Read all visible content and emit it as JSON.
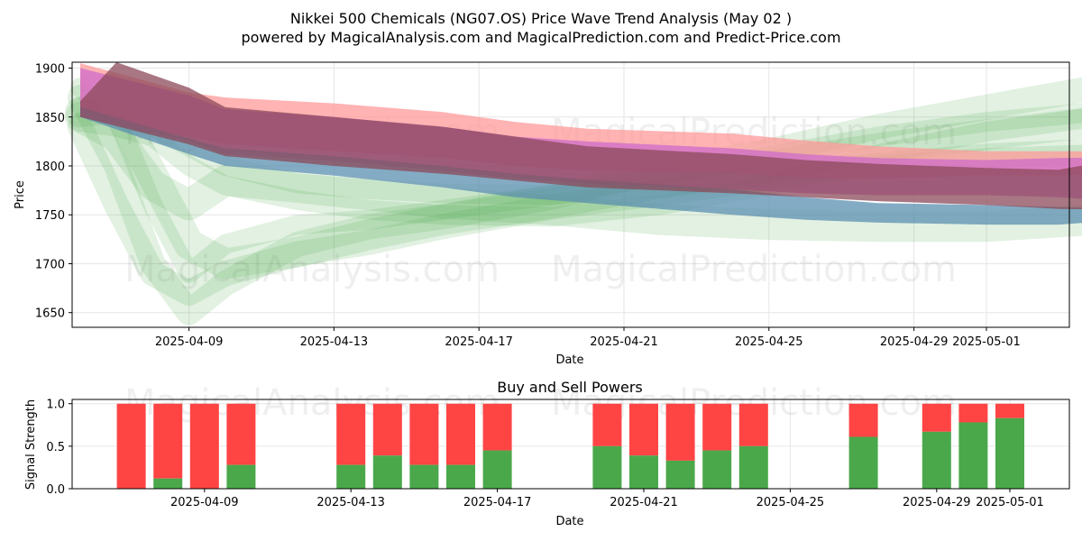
{
  "title_line1": "Nikkei 500 Chemicals (NG07.OS) Price Wave Trend Analysis (May 02 )",
  "title_line2": "powered by MagicalAnalysis.com and MagicalPrediction.com and Predict-Price.com",
  "watermarks": [
    "MagicalAnalysis.com",
    "MagicalPrediction.com"
  ],
  "colors": {
    "sell": "#ff4444",
    "buy": "#4aa84a",
    "red_band": "#ff9999",
    "magenta_band": "#cc66cc",
    "blue_band": "#5b8fb0",
    "green_band": "#4aa84a",
    "dark_band": "#8b4a5a"
  },
  "chart_data": [
    {
      "type": "area",
      "xlabel": "Date",
      "ylabel": "Price",
      "ylim": [
        1635,
        1906
      ],
      "yticks": [
        1650,
        1700,
        1750,
        1800,
        1850,
        1900
      ],
      "xticks": [
        "2025-04-09",
        "2025-04-13",
        "2025-04-17",
        "2025-04-21",
        "2025-04-25",
        "2025-04-29",
        "2025-05-01"
      ],
      "grid": true,
      "series": [
        {
          "role": "red band upper",
          "x": [
            0,
            3,
            4,
            7,
            10,
            12,
            14,
            18,
            20,
            22,
            25,
            27,
            30
          ],
          "values": [
            1905,
            1875,
            1870,
            1864,
            1855,
            1845,
            1838,
            1833,
            1826,
            1820,
            1815,
            1815,
            1815
          ]
        },
        {
          "role": "red band lower",
          "x": [
            0,
            3,
            4,
            7,
            10,
            12,
            14,
            18,
            20,
            22,
            25,
            27,
            30
          ],
          "values": [
            1850,
            1830,
            1822,
            1815,
            1808,
            1800,
            1795,
            1793,
            1788,
            1787,
            1790,
            1790,
            1795
          ]
        },
        {
          "role": "magenta band upper",
          "x": [
            0,
            3,
            4,
            7,
            10,
            12,
            14,
            18,
            20,
            22,
            25,
            27,
            30
          ],
          "values": [
            1900,
            1872,
            1858,
            1850,
            1840,
            1830,
            1825,
            1818,
            1812,
            1808,
            1806,
            1808,
            1810
          ]
        },
        {
          "role": "magenta band lower",
          "x": [
            0,
            3,
            4,
            7,
            10,
            12,
            14,
            18,
            20,
            22,
            25,
            27,
            30
          ],
          "values": [
            1850,
            1825,
            1812,
            1805,
            1795,
            1787,
            1782,
            1776,
            1772,
            1770,
            1770,
            1768,
            1760
          ]
        },
        {
          "role": "blue band upper",
          "x": [
            0,
            3,
            4,
            7,
            10,
            12,
            14,
            18,
            20,
            22,
            25,
            27,
            30
          ],
          "values": [
            1860,
            1828,
            1818,
            1810,
            1800,
            1792,
            1786,
            1776,
            1768,
            1762,
            1760,
            1758,
            1755
          ]
        },
        {
          "role": "blue band lower",
          "x": [
            0,
            3,
            4,
            7,
            10,
            12,
            14,
            18,
            20,
            22,
            25,
            27,
            30
          ],
          "values": [
            1850,
            1812,
            1800,
            1790,
            1778,
            1768,
            1762,
            1750,
            1745,
            1742,
            1740,
            1740,
            1748
          ]
        },
        {
          "role": "dark band upper",
          "x": [
            0,
            1,
            3,
            4,
            7,
            10,
            12,
            14,
            18,
            20,
            22,
            25,
            27,
            29,
            30
          ],
          "values": [
            1866,
            1906,
            1880,
            1860,
            1850,
            1840,
            1830,
            1820,
            1812,
            1806,
            1802,
            1798,
            1796,
            1810,
            1760
          ]
        },
        {
          "role": "dark band lower",
          "x": [
            0,
            3,
            4,
            7,
            10,
            12,
            14,
            18,
            20,
            22,
            25,
            27,
            29,
            30
          ],
          "values": [
            1850,
            1822,
            1810,
            1800,
            1792,
            1785,
            1778,
            1772,
            1768,
            1764,
            1760,
            1756,
            1755,
            1752
          ]
        },
        {
          "role": "green wave 1",
          "x": [
            0,
            1,
            2,
            3,
            4,
            6,
            8,
            10,
            13,
            16,
            19,
            22,
            25,
            28,
            30
          ],
          "values": [
            1880,
            1850,
            1760,
            1690,
            1720,
            1740,
            1745,
            1755,
            1770,
            1790,
            1810,
            1830,
            1845,
            1855,
            1870
          ]
        },
        {
          "role": "green wave 2",
          "x": [
            0,
            1,
            2,
            3,
            4,
            6,
            8,
            10,
            13,
            16,
            19,
            22,
            25,
            28,
            30
          ],
          "values": [
            1870,
            1800,
            1700,
            1650,
            1680,
            1720,
            1738,
            1748,
            1768,
            1795,
            1815,
            1840,
            1860,
            1880,
            1900
          ]
        },
        {
          "role": "green wave 3",
          "x": [
            0,
            1,
            2,
            3,
            4,
            6,
            8,
            10,
            13,
            16,
            19,
            22,
            25,
            28,
            30
          ],
          "values": [
            1855,
            1860,
            1790,
            1720,
            1700,
            1712,
            1730,
            1745,
            1762,
            1782,
            1800,
            1818,
            1832,
            1845,
            1860
          ]
        },
        {
          "role": "green wave 4",
          "x": [
            0,
            1,
            2,
            3,
            4,
            6,
            8,
            10,
            13,
            16,
            19,
            22,
            25,
            28,
            30
          ],
          "values": [
            1845,
            1840,
            1830,
            1800,
            1780,
            1765,
            1755,
            1750,
            1748,
            1760,
            1780,
            1812,
            1835,
            1850,
            1885
          ]
        },
        {
          "role": "green wave 5",
          "x": [
            0,
            1,
            2,
            3,
            4,
            6,
            8,
            10,
            13,
            16,
            19,
            22,
            25,
            28,
            30
          ],
          "values": [
            1840,
            1760,
            1690,
            1670,
            1690,
            1710,
            1722,
            1738,
            1758,
            1772,
            1788,
            1800,
            1810,
            1815,
            1750
          ]
        },
        {
          "role": "green wave 6",
          "x": [
            0,
            1,
            2,
            3,
            4,
            6,
            8,
            10,
            13,
            16,
            19,
            22,
            25,
            28,
            30
          ],
          "values": [
            1850,
            1830,
            1780,
            1760,
            1785,
            1778,
            1770,
            1762,
            1755,
            1745,
            1740,
            1738,
            1738,
            1745,
            1755
          ]
        },
        {
          "role": "green wave 7",
          "x": [
            0,
            1,
            2,
            3,
            4,
            6,
            8,
            10,
            13,
            16,
            19,
            22,
            25,
            28,
            30
          ],
          "values": [
            1860,
            1855,
            1840,
            1820,
            1800,
            1782,
            1776,
            1772,
            1770,
            1778,
            1790,
            1800,
            1808,
            1812,
            1820
          ]
        }
      ]
    },
    {
      "type": "bar",
      "title": "Buy and Sell Powers",
      "xlabel": "Date",
      "ylabel": "Signal Strength",
      "ylim": [
        0,
        1.05
      ],
      "yticks": [
        0.0,
        0.5,
        1.0
      ],
      "xticks": [
        "2025-04-09",
        "2025-04-13",
        "2025-04-17",
        "2025-04-21",
        "2025-04-25",
        "2025-04-29",
        "2025-05-01"
      ],
      "grid": true,
      "days": [
        1,
        2,
        3,
        4,
        7,
        8,
        9,
        10,
        11,
        14,
        15,
        16,
        17,
        18,
        21,
        23,
        24,
        25
      ],
      "buy": [
        0.0,
        0.12,
        0.0,
        0.28,
        0.28,
        0.39,
        0.28,
        0.28,
        0.45,
        0.5,
        0.39,
        0.33,
        0.45,
        0.5,
        0.61,
        0.67,
        0.78,
        0.83
      ],
      "sell": [
        1.0,
        0.88,
        1.0,
        0.72,
        0.72,
        0.61,
        0.72,
        0.72,
        0.55,
        0.5,
        0.61,
        0.67,
        0.55,
        0.5,
        0.39,
        0.33,
        0.22,
        0.17
      ]
    }
  ]
}
